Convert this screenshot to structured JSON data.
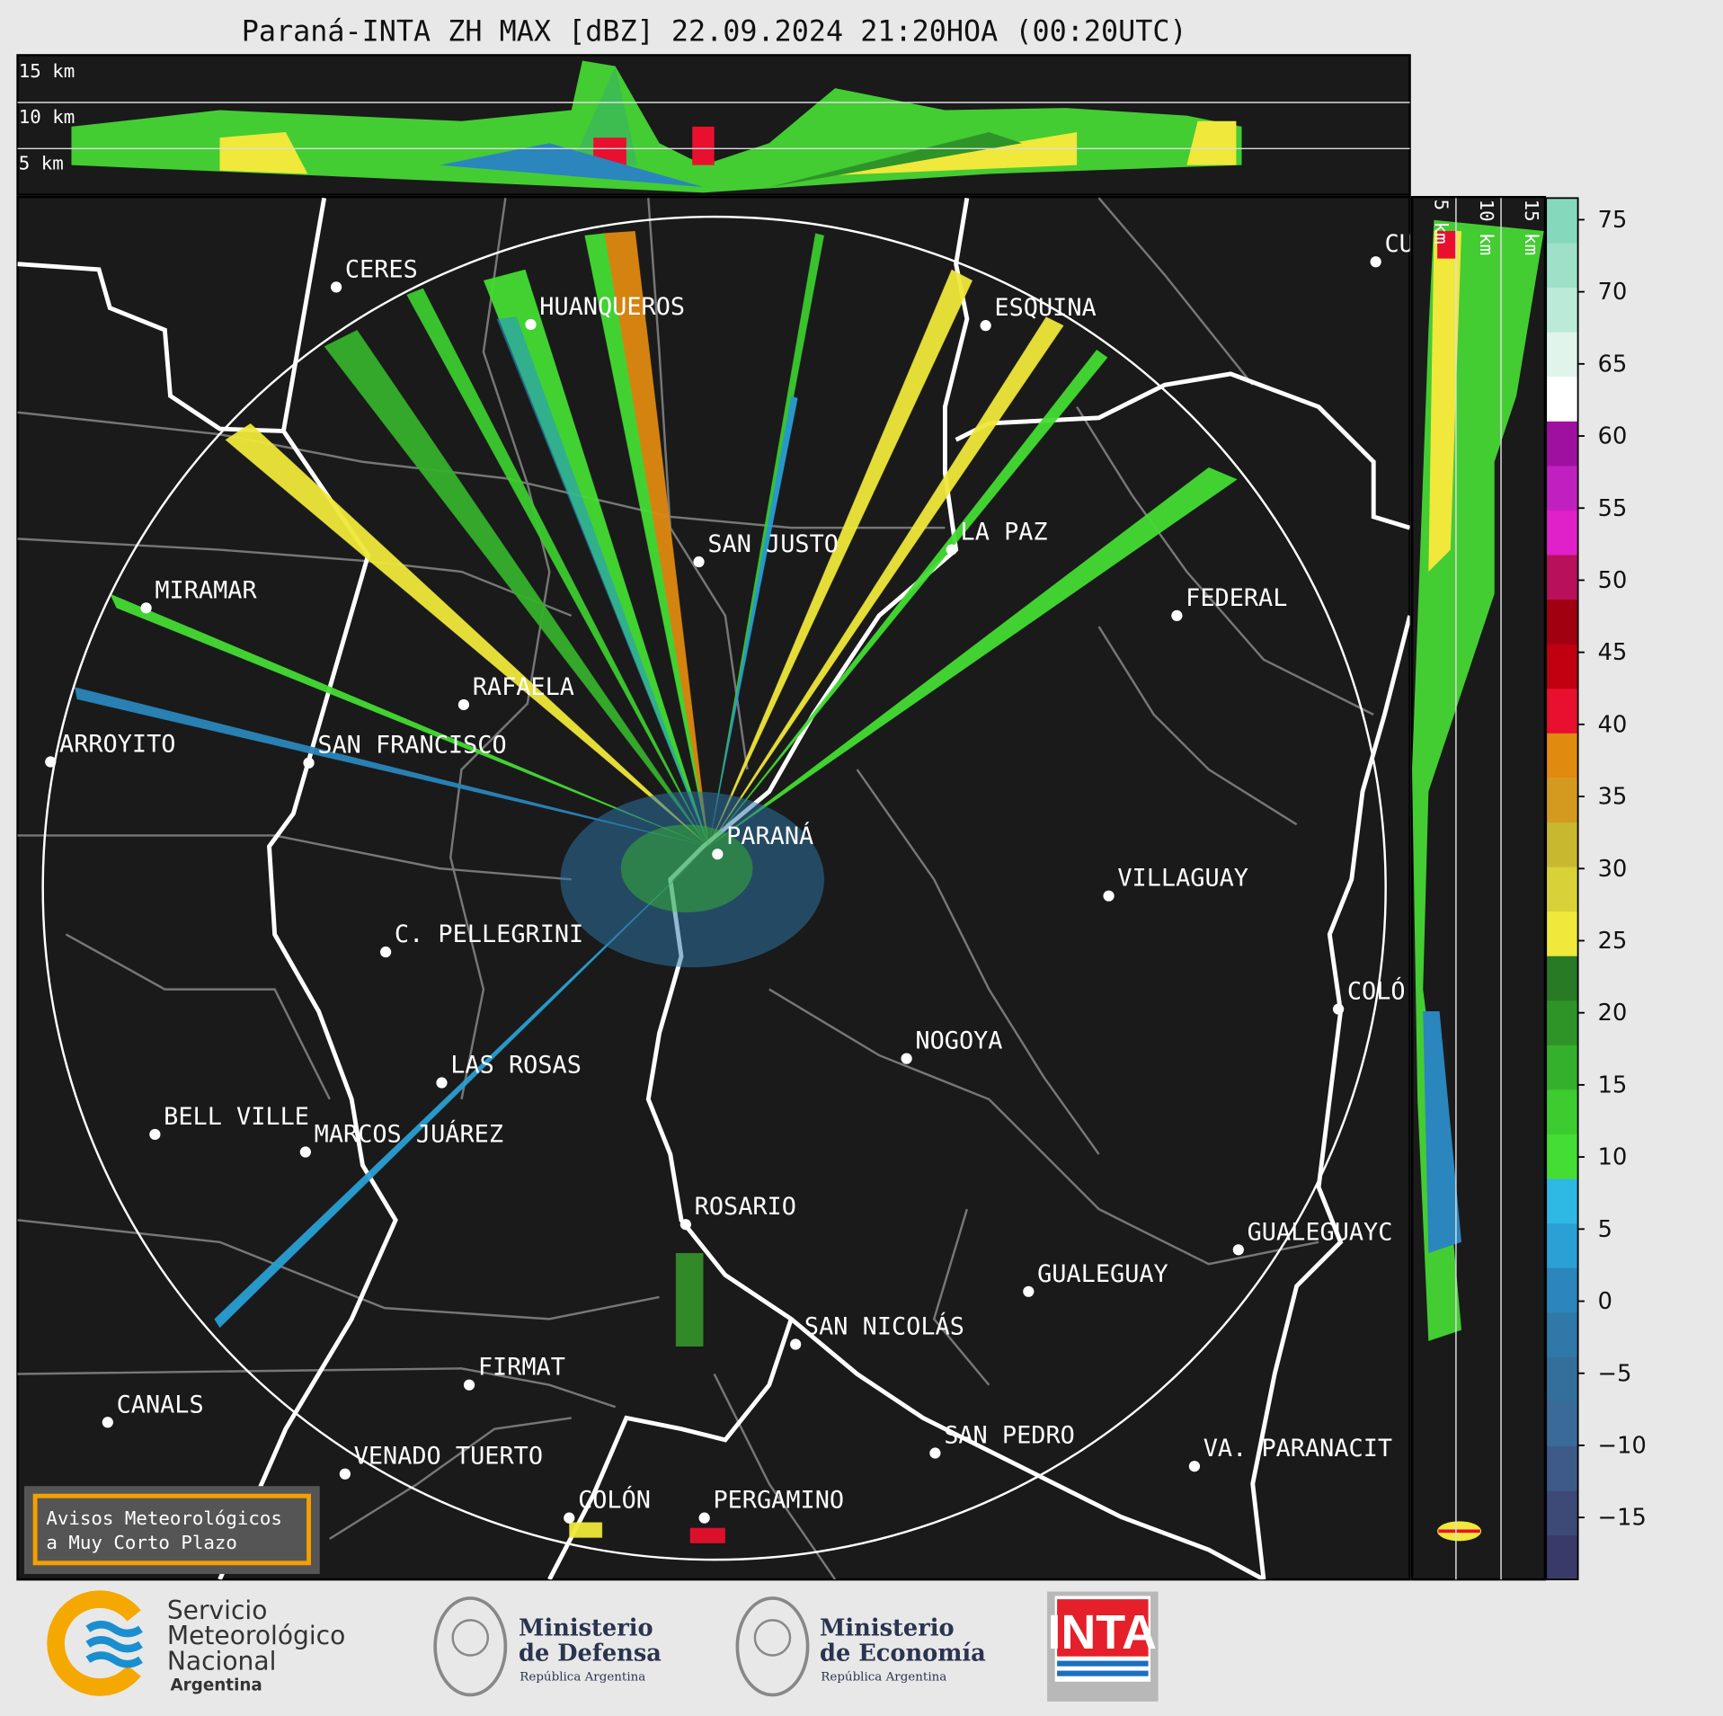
{
  "title": "Paraná-INTA ZH MAX [dBZ] 22.09.2024 21:20HOA (00:20UTC)",
  "top_profile": {
    "labels": [
      "15 km",
      "10 km",
      "5 km"
    ]
  },
  "side_profile": {
    "labels": [
      "5 km",
      "10 km",
      "15 km"
    ]
  },
  "map": {
    "cities": [
      "CERES",
      "HUANQUEROS",
      "ESQUINA",
      "CU",
      "SAN JUSTO",
      "LA PAZ",
      "MIRAMAR",
      "FEDERAL",
      "RAFAELA",
      "ARROYITO",
      "SAN FRANCISCO",
      "PARANÁ",
      "VILLAGUAY",
      "C. PELLEGRINI",
      "COLÓ",
      "NOGOYA",
      "LAS ROSAS",
      "BELL VILLE",
      "MARCOS JUÁREZ",
      "ROSARIO",
      "GUALEGUAYC",
      "GUALEGUAY",
      "SAN NICOLÁS",
      "FIRMAT",
      "CANALS",
      "SAN PEDRO",
      "VA. PARANACIT",
      "VENADO TUERTO",
      "COLÓN",
      "PERGAMINO"
    ]
  },
  "colorbar": {
    "lim": [
      -19.3,
      76.5
    ],
    "ticks": [
      {
        "value": -15,
        "label": "−15"
      },
      {
        "value": -10,
        "label": "−10"
      },
      {
        "value": -5,
        "label": "−5"
      },
      0,
      5,
      10,
      15,
      20,
      25,
      30,
      35,
      40,
      45,
      50,
      55,
      60,
      65,
      70,
      75
    ],
    "colors": [
      "#3a3a68",
      "#3d4a78",
      "#3e5a88",
      "#3a6a98",
      "#336f9a",
      "#2f78a8",
      "#2a86bc",
      "#2aa0d4",
      "#2eb8e4",
      "#44dd33",
      "#3ccc30",
      "#35b02c",
      "#2e9428",
      "#287a24",
      "#f0e83a",
      "#d8d238",
      "#c8b830",
      "#d49a20",
      "#e08a10",
      "#e8102e",
      "#c00010",
      "#a00010",
      "#b8105a",
      "#e020c8",
      "#c020c0",
      "#a010a0",
      "#ffffff",
      "#e0f4ec",
      "#bcead8",
      "#9ee0c8",
      "#86d8bc"
    ]
  },
  "notice": [
    "Avisos Meteorológicos",
    "a Muy Corto Plazo"
  ],
  "logos": {
    "smn": [
      "Servicio",
      "Meteorológico",
      "Nacional",
      "Argentina"
    ],
    "defensa": [
      "Ministerio",
      "de Defensa",
      "República Argentina"
    ],
    "economia": [
      "Ministerio",
      "de Economía",
      "República Argentina"
    ],
    "inta": "INTA"
  }
}
